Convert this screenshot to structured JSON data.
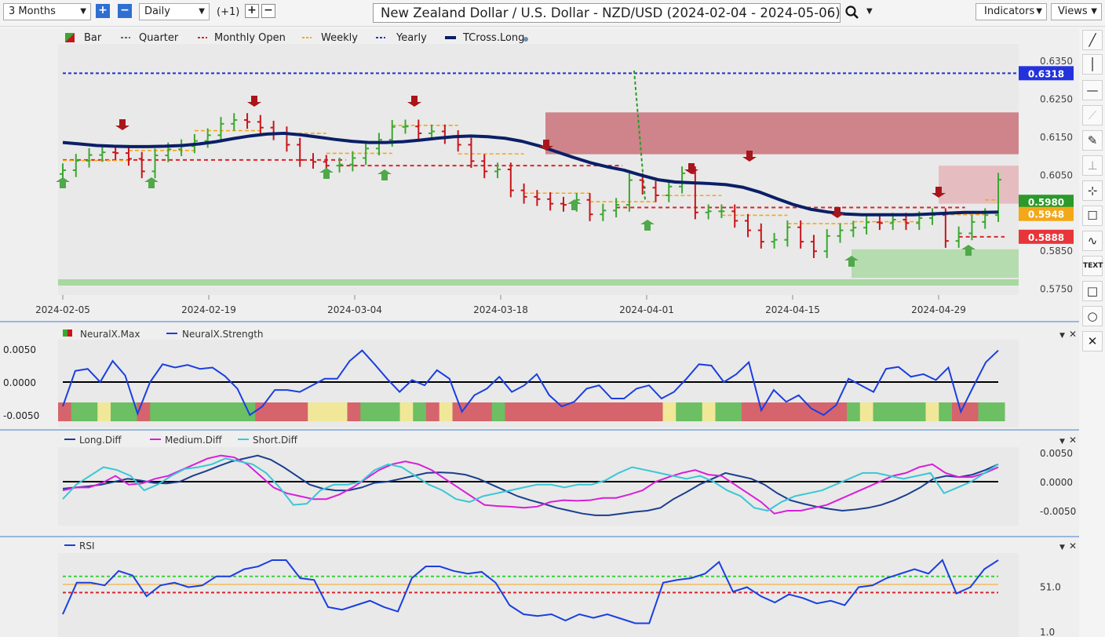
{
  "toolbar": {
    "range": "3 Months",
    "interval": "Daily",
    "offset": "(+1)",
    "title": "New Zealand Dollar / U.S. Dollar - NZD/USD (2024-02-04 - 2024-05-06)",
    "indicators_label": "Indicators",
    "views_label": "Views"
  },
  "colors": {
    "bull": "#3aa82e",
    "bear": "#c8151b",
    "tcross": "#0a1f66",
    "strength": "#1a3fe0",
    "long": "#1a3f8f",
    "medium": "#d81fd8",
    "short": "#39c7d6"
  },
  "chart_data": [
    {
      "type": "line",
      "panel": "price",
      "legend": [
        "Bar",
        "Quarter",
        "Monthly Open",
        "Weekly",
        "Yearly",
        "TCross.Long"
      ],
      "x_ticks": [
        "2024-02-05",
        "2024-02-19",
        "2024-03-04",
        "2024-03-18",
        "2024-04-01",
        "2024-04-15",
        "2024-04-29"
      ],
      "y_ticks": [
        "0.6350",
        "0.6250",
        "0.6150",
        "0.6050",
        "0.5850",
        "0.5750"
      ],
      "ylim": [
        0.5735,
        0.6395
      ],
      "price_labels": [
        {
          "value": "0.6318",
          "price": 0.6318,
          "color": "#2233dd"
        },
        {
          "value": "0.5980",
          "price": 0.598,
          "color": "#2a9a2a"
        },
        {
          "value": "0.5948",
          "price": 0.5948,
          "color": "#f2a818"
        },
        {
          "value": "0.5888",
          "price": 0.5888,
          "color": "#e8353a"
        }
      ],
      "levels": {
        "yearly": 0.6318,
        "monthly_open_feb": 0.609,
        "monthly_open_mar": 0.6075,
        "monthly_open_apr": 0.5965,
        "monthly_open_may": 0.5888
      },
      "closes": [
        0.6063,
        0.6088,
        0.6103,
        0.611,
        0.6108,
        0.6093,
        0.606,
        0.6102,
        0.6118,
        0.6126,
        0.614,
        0.6155,
        0.6185,
        0.6195,
        0.619,
        0.6175,
        0.616,
        0.613,
        0.609,
        0.6085,
        0.6075,
        0.6078,
        0.6095,
        0.612,
        0.6143,
        0.6177,
        0.6178,
        0.616,
        0.6165,
        0.615,
        0.613,
        0.6087,
        0.606,
        0.6065,
        0.601,
        0.5993,
        0.5987,
        0.5975,
        0.5972,
        0.5985,
        0.5947,
        0.5957,
        0.5972,
        0.6037,
        0.6017,
        0.5997,
        0.602,
        0.6055,
        0.5952,
        0.5955,
        0.5955,
        0.593,
        0.5905,
        0.5875,
        0.588,
        0.5913,
        0.5875,
        0.585,
        0.589,
        0.5905,
        0.5912,
        0.5926,
        0.5924,
        0.5933,
        0.5924,
        0.5937,
        0.5945,
        0.5877,
        0.5897,
        0.5927,
        0.5945,
        0.6038
      ],
      "tcross": [
        0.6136,
        0.6132,
        0.6128,
        0.6126,
        0.6125,
        0.6125,
        0.6126,
        0.6128,
        0.6132,
        0.6138,
        0.6146,
        0.6153,
        0.6158,
        0.616,
        0.6156,
        0.615,
        0.6144,
        0.6139,
        0.6136,
        0.6136,
        0.6138,
        0.6142,
        0.6147,
        0.6151,
        0.6153,
        0.6151,
        0.6147,
        0.6139,
        0.6127,
        0.6112,
        0.6097,
        0.6083,
        0.6072,
        0.6063,
        0.605,
        0.6038,
        0.6032,
        0.603,
        0.6028,
        0.6025,
        0.6018,
        0.6005,
        0.5988,
        0.5972,
        0.596,
        0.5953,
        0.5948,
        0.5946,
        0.5946,
        0.5946,
        0.5946,
        0.5948,
        0.595,
        0.5952,
        0.5952,
        0.5953
      ],
      "boxes": {
        "resistance": [
          0.6215,
          0.6105
        ],
        "support": [
          0.5855,
          0.578
        ]
      }
    },
    {
      "type": "line",
      "panel": "neuralx",
      "legend": [
        "NeuralX.Max",
        "NeuralX.Strength"
      ],
      "y_ticks": [
        "0.0050",
        "0.0000",
        "-0.0050"
      ],
      "ylim": [
        -0.0062,
        0.0062
      ],
      "series": [
        {
          "name": "NeuralX.Strength",
          "values": [
            -0.0037,
            0.0017,
            0.002,
            0.0,
            0.0032,
            0.001,
            -0.0048,
            0.0,
            0.0027,
            0.0022,
            0.0026,
            0.002,
            0.0022,
            0.0009,
            -0.001,
            -0.005,
            -0.0037,
            -0.0012,
            -0.0012,
            -0.0015,
            -0.0005,
            0.0005,
            0.0005,
            0.0032,
            0.0048,
            0.0027,
            0.0005,
            -0.0015,
            0.0003,
            -0.0005,
            0.0018,
            0.0005,
            -0.0045,
            -0.002,
            -0.001,
            0.0008,
            -0.0015,
            -0.0005,
            0.0012,
            -0.002,
            -0.0037,
            -0.003,
            -0.001,
            -0.0005,
            -0.0025,
            -0.0025,
            -0.001,
            -0.0005,
            -0.0025,
            -0.0015,
            0.0005,
            0.0027,
            0.0025,
            0.0,
            0.0012,
            0.003,
            -0.0043,
            -0.0012,
            -0.003,
            -0.002,
            -0.004,
            -0.005,
            -0.0035,
            0.0005,
            -0.0005,
            -0.0015,
            0.002,
            0.0023,
            0.0008,
            0.0012,
            0.0003,
            0.0022,
            -0.0045,
            -0.0007,
            0.003,
            0.0048
          ]
        }
      ],
      "bands": [
        "r",
        "g",
        "g",
        "y",
        "g",
        "g",
        "r",
        "g",
        "g",
        "g",
        "g",
        "g",
        "g",
        "g",
        "g",
        "r",
        "r",
        "r",
        "r",
        "y",
        "y",
        "y",
        "r",
        "g",
        "g",
        "g",
        "y",
        "g",
        "r",
        "y",
        "r",
        "r",
        "r",
        "g",
        "r",
        "r",
        "r",
        "r",
        "r",
        "r",
        "r",
        "r",
        "r",
        "r",
        "r",
        "r",
        "y",
        "g",
        "g",
        "y",
        "g",
        "g",
        "r",
        "r",
        "r",
        "r",
        "r",
        "r",
        "r",
        "r",
        "g",
        "y",
        "g",
        "g",
        "g",
        "g",
        "y",
        "g",
        "r",
        "r",
        "g",
        "g"
      ]
    },
    {
      "type": "line",
      "panel": "diff",
      "legend": [
        "Long.Diff",
        "Medium.Diff",
        "Short.Diff"
      ],
      "y_ticks": [
        "0.0050",
        "0.0000",
        "-0.0050"
      ],
      "ylim": [
        -0.0075,
        0.0075
      ],
      "series": [
        {
          "name": "Long.Diff",
          "values": [
            -0.0012,
            -0.001,
            -0.0008,
            -0.0005,
            0.0,
            0.0005,
            0.0002,
            -0.0002,
            -0.0003,
            0.0,
            0.001,
            0.0018,
            0.0027,
            0.0035,
            0.004,
            0.0045,
            0.0038,
            0.0025,
            0.001,
            -0.0005,
            -0.0012,
            -0.0015,
            -0.0015,
            -0.001,
            -0.0002,
            0.0,
            0.0005,
            0.001,
            0.0015,
            0.0016,
            0.0015,
            0.0012,
            0.0005,
            -0.0005,
            -0.0015,
            -0.0025,
            -0.0032,
            -0.0038,
            -0.0045,
            -0.005,
            -0.0055,
            -0.0058,
            -0.0058,
            -0.0055,
            -0.0052,
            -0.005,
            -0.0045,
            -0.003,
            -0.0018,
            -0.0005,
            0.0005,
            0.0015,
            0.001,
            0.0005,
            -0.0005,
            -0.002,
            -0.0032,
            -0.0038,
            -0.0043,
            -0.0047,
            -0.005,
            -0.0048,
            -0.0045,
            -0.004,
            -0.0032,
            -0.0022,
            -0.001,
            0.0005,
            0.001,
            0.0008,
            0.0012,
            0.002,
            0.003
          ]
        },
        {
          "name": "Medium.Diff",
          "values": [
            -0.0015,
            -0.001,
            -0.001,
            -0.0002,
            0.001,
            -0.0005,
            -0.0003,
            0.0005,
            0.001,
            0.002,
            0.003,
            0.004,
            0.0045,
            0.0042,
            0.003,
            0.001,
            -0.001,
            -0.002,
            -0.0025,
            -0.003,
            -0.003,
            -0.0022,
            -0.001,
            0.0005,
            0.002,
            0.003,
            0.0035,
            0.003,
            0.002,
            0.0005,
            -0.001,
            -0.0025,
            -0.004,
            -0.0042,
            -0.0043,
            -0.0045,
            -0.0043,
            -0.0035,
            -0.0032,
            -0.0033,
            -0.0032,
            -0.0028,
            -0.0028,
            -0.0022,
            -0.0015,
            0.0,
            0.0008,
            0.0015,
            0.002,
            0.0012,
            0.001,
            -0.0005,
            -0.002,
            -0.0035,
            -0.0055,
            -0.005,
            -0.005,
            -0.0045,
            -0.004,
            -0.003,
            -0.002,
            -0.001,
            0.0,
            0.001,
            0.0015,
            0.0025,
            0.003,
            0.0015,
            0.0008,
            0.0008,
            0.0015,
            0.0025
          ]
        },
        {
          "name": "Short.Diff",
          "values": [
            -0.003,
            -0.0005,
            0.001,
            0.0025,
            0.002,
            0.001,
            -0.0015,
            -0.0005,
            0.001,
            0.0022,
            0.0025,
            0.003,
            0.004,
            0.0035,
            0.003,
            0.0015,
            -0.001,
            -0.004,
            -0.0038,
            -0.0015,
            -0.0005,
            -0.0005,
            0.0,
            0.002,
            0.003,
            0.0025,
            0.001,
            -0.0005,
            -0.0015,
            -0.003,
            -0.0035,
            -0.0025,
            -0.002,
            -0.0015,
            -0.001,
            -0.0005,
            -0.0005,
            -0.001,
            -0.0005,
            -0.0005,
            0.0002,
            0.0015,
            0.0025,
            0.002,
            0.0015,
            0.001,
            0.0005,
            0.001,
            0.0,
            -0.0015,
            -0.0025,
            -0.0045,
            -0.005,
            -0.0035,
            -0.0025,
            -0.002,
            -0.0015,
            -0.0005,
            0.0005,
            0.0015,
            0.0015,
            0.001,
            0.0005,
            0.001,
            0.0015,
            -0.002,
            -0.001,
            0.0,
            0.0015,
            0.003
          ]
        }
      ]
    },
    {
      "type": "line",
      "panel": "rsi",
      "legend": [
        "RSI"
      ],
      "y_ticks": [
        "51.0",
        "1.0"
      ],
      "ylim": [
        0,
        100
      ],
      "levels": {
        "upper": 62,
        "middle": 53,
        "lower": 44
      },
      "series": [
        {
          "name": "RSI",
          "values": [
            20,
            55,
            55,
            52,
            68,
            63,
            40,
            52,
            55,
            50,
            52,
            62,
            62,
            70,
            73,
            80,
            80,
            60,
            58,
            28,
            25,
            30,
            35,
            28,
            23,
            60,
            73,
            73,
            68,
            65,
            67,
            55,
            30,
            20,
            18,
            20,
            13,
            20,
            16,
            20,
            15,
            10,
            10,
            55,
            58,
            60,
            65,
            78,
            45,
            50,
            40,
            33,
            42,
            38,
            32,
            35,
            30,
            50,
            52,
            60,
            65,
            70,
            65,
            80,
            43,
            50,
            70,
            80
          ]
        }
      ]
    }
  ]
}
